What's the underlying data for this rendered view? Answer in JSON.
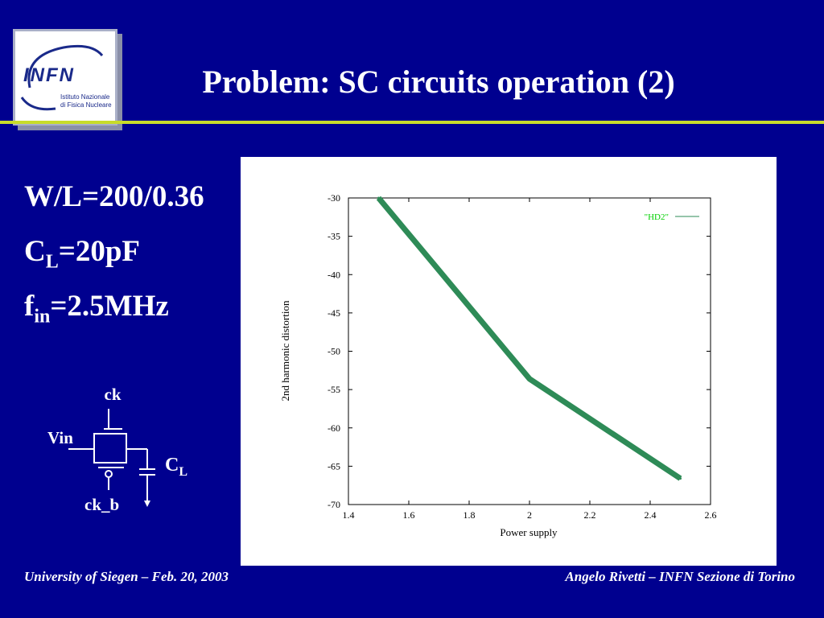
{
  "slide": {
    "title": "Problem: SC circuits operation (2)",
    "logo": {
      "name": "INFN",
      "subtitle_line1": "Istituto Nazionale",
      "subtitle_line2": "di Fisica Nucleare"
    },
    "params": {
      "wl": "W/L=200/0.36",
      "cl_main": "C",
      "cl_sub": "L",
      "cl_value": "=20pF",
      "fin_main": "f",
      "fin_sub": "in",
      "fin_value": "=2.5MHz"
    },
    "circuit": {
      "ck": "ck",
      "vin": "Vin",
      "ck_b": "ck_b",
      "cl_main": "C",
      "cl_sub": "L"
    },
    "footer": {
      "left": "University of Siegen – Feb. 20, 2003",
      "right": "Angelo Rivetti – INFN Sezione di Torino"
    },
    "colors": {
      "background": "#00008f",
      "rule": "#c8dc2a",
      "series": "#2e8b57",
      "legend_text": "#00d000"
    }
  },
  "chart_data": {
    "type": "line",
    "title": "",
    "xlabel": "Power supply",
    "ylabel": "2nd harmonic distortion",
    "xlim": [
      1.4,
      2.6
    ],
    "ylim": [
      -70,
      -30
    ],
    "xticks": [
      "1.4",
      "1.6",
      "1.8",
      "2",
      "2.2",
      "2.4",
      "2.6"
    ],
    "yticks": [
      "-30",
      "-35",
      "-40",
      "-45",
      "-50",
      "-55",
      "-60",
      "-65",
      "-70"
    ],
    "legend_position": "top-right",
    "series": [
      {
        "name": "\"HD2\"",
        "x": [
          1.5,
          2.0,
          2.5
        ],
        "y": [
          -30,
          -53.6,
          -66.6
        ]
      }
    ]
  }
}
